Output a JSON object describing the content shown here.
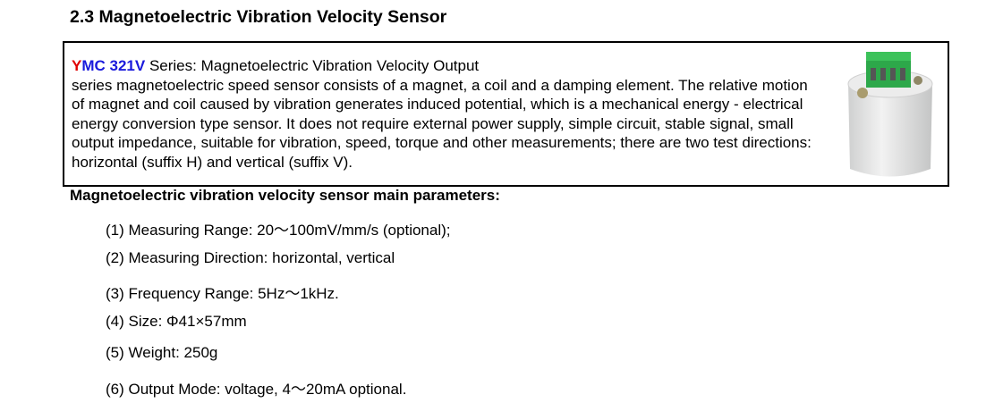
{
  "section": {
    "title": "2.3  Magnetoelectric Vibration Velocity Sensor"
  },
  "intro": {
    "model_y": "Y",
    "model_rest": "MC 321V",
    "line1": " Series: Magnetoelectric Vibration Velocity Output",
    "body": "series magnetoelectric speed sensor consists of a magnet, a coil and a damping element. The relative motion of magnet and coil caused by vibration generates induced potential, which is a mechanical energy - electrical energy conversion type sensor. It does not require external power supply, simple circuit, stable signal, small output impedance, suitable for vibration, speed, torque and other measurements; there are two test directions: horizontal (suffix H) and vertical (suffix V).",
    "colors": {
      "model_y": "#e00000",
      "model_rest": "#1a1adc"
    }
  },
  "params": {
    "heading": "Magnetoelectric vibration velocity sensor main parameters:",
    "items": [
      "(1) Measuring Range: 20～100mV/mm/s (optional);",
      "(2) Measuring Direction: horizontal, vertical",
      "(3) Frequency Range: 5Hz～1kHz.",
      "(4) Size: Φ41×57mm",
      "(5) Weight: 250g",
      "(6) Output Mode: voltage, 4～20mA optional."
    ]
  }
}
